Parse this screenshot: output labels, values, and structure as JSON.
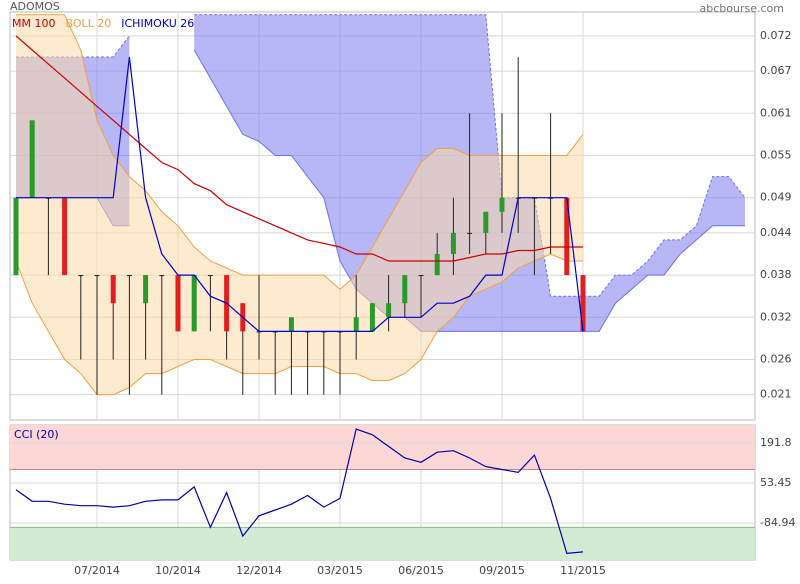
{
  "chart_data": [
    {
      "type": "candlestick",
      "title": "ADOMOS",
      "source": "abcbourse.com",
      "open": [
        0.038,
        0.049,
        0.049,
        0.049,
        0.038,
        0.038,
        0.038,
        0.038,
        0.034,
        0.038,
        0.038,
        0.03,
        0.038,
        0.038,
        0.034,
        0.03,
        0.03,
        0.03,
        0.03,
        0.03,
        0.03,
        0.03,
        0.03,
        0.032,
        0.034,
        0.038,
        0.038,
        0.041,
        0.044,
        0.044,
        0.047,
        0.049,
        0.049,
        0.049,
        0.049,
        0.038,
        null,
        null,
        null,
        null,
        null,
        null,
        null,
        null,
        null,
        null
      ],
      "high": [
        0.049,
        0.06,
        0.049,
        0.049,
        0.038,
        0.038,
        0.038,
        0.038,
        0.038,
        0.038,
        0.038,
        0.038,
        0.038,
        0.038,
        0.034,
        0.038,
        0.03,
        0.032,
        0.03,
        0.03,
        0.03,
        0.038,
        0.034,
        0.038,
        0.038,
        0.038,
        0.044,
        0.049,
        0.061,
        0.047,
        0.061,
        0.069,
        0.049,
        0.061,
        0.049,
        0.038,
        null,
        null,
        null,
        null,
        null,
        null,
        null,
        null,
        null,
        null
      ],
      "low": [
        0.038,
        0.049,
        0.038,
        0.038,
        0.026,
        0.021,
        0.026,
        0.021,
        0.026,
        0.021,
        0.03,
        0.03,
        0.03,
        0.026,
        0.021,
        0.026,
        0.021,
        0.021,
        0.021,
        0.021,
        0.021,
        0.026,
        0.03,
        0.03,
        0.032,
        0.032,
        0.038,
        0.038,
        0.041,
        0.041,
        0.044,
        0.044,
        0.038,
        0.041,
        0.038,
        0.03,
        null,
        null,
        null,
        null,
        null,
        null,
        null,
        null,
        null,
        null
      ],
      "close": [
        0.049,
        0.06,
        0.049,
        0.038,
        0.038,
        0.038,
        0.034,
        0.038,
        0.038,
        0.038,
        0.03,
        0.038,
        0.038,
        0.03,
        0.03,
        0.03,
        0.03,
        0.032,
        0.03,
        0.03,
        0.03,
        0.032,
        0.034,
        0.034,
        0.038,
        0.038,
        0.041,
        0.044,
        0.044,
        0.047,
        0.049,
        0.049,
        0.049,
        0.049,
        0.038,
        0.03,
        null,
        null,
        null,
        null,
        null,
        null,
        null,
        null,
        null,
        null
      ],
      "up_color": "#2a9a2a",
      "down_color": "#e02020",
      "flat_color": "#222222",
      "series": [
        {
          "name": "MM 100",
          "color": "#cc0000",
          "values": [
            0.072,
            0.07,
            0.068,
            0.066,
            0.064,
            0.062,
            0.06,
            0.058,
            0.056,
            0.054,
            0.053,
            0.051,
            0.05,
            0.048,
            0.047,
            0.046,
            0.045,
            0.044,
            0.043,
            0.0425,
            0.042,
            0.041,
            0.041,
            0.04,
            0.04,
            0.04,
            0.04,
            0.04,
            0.0405,
            0.041,
            0.041,
            0.0415,
            0.0415,
            0.042,
            0.042,
            0.042,
            null,
            null,
            null,
            null,
            null,
            null,
            null,
            null,
            null,
            null
          ]
        },
        {
          "name": "BOLL 20",
          "color": "#f0a040",
          "fill": "#fbd9a8",
          "upper": [
            0.075,
            0.075,
            0.075,
            0.075,
            0.07,
            0.06,
            0.055,
            0.052,
            0.05,
            0.047,
            0.045,
            0.042,
            0.04,
            0.039,
            0.038,
            0.038,
            0.038,
            0.038,
            0.038,
            0.038,
            0.036,
            0.038,
            0.042,
            0.046,
            0.05,
            0.054,
            0.056,
            0.056,
            0.055,
            0.055,
            0.055,
            0.055,
            0.055,
            0.055,
            0.055,
            0.058,
            null,
            null,
            null,
            null,
            null,
            null,
            null,
            null,
            null,
            null
          ],
          "lower": [
            0.04,
            0.034,
            0.03,
            0.026,
            0.024,
            0.021,
            0.021,
            0.022,
            0.024,
            0.024,
            0.025,
            0.026,
            0.026,
            0.025,
            0.024,
            0.024,
            0.024,
            0.025,
            0.025,
            0.025,
            0.024,
            0.024,
            0.023,
            0.023,
            0.024,
            0.026,
            0.03,
            0.032,
            0.035,
            0.036,
            0.037,
            0.039,
            0.04,
            0.041,
            0.04,
            0.04,
            null,
            null,
            null,
            null,
            null,
            null,
            null,
            null,
            null,
            null
          ]
        },
        {
          "name": "ICHIMOKU 26",
          "color": "#0000cc",
          "cloud_color": "#6f6fee",
          "values": [
            0.049,
            0.049,
            0.049,
            0.049,
            0.049,
            0.049,
            0.049,
            0.069,
            0.049,
            0.041,
            0.038,
            0.038,
            0.035,
            0.034,
            0.032,
            0.03,
            0.03,
            0.03,
            0.03,
            0.03,
            0.03,
            0.03,
            0.03,
            0.032,
            0.032,
            0.032,
            0.034,
            0.034,
            0.035,
            0.038,
            0.038,
            0.049,
            0.049,
            0.049,
            0.049,
            0.03,
            null,
            null,
            null,
            null,
            null,
            null,
            null,
            null,
            null,
            null
          ],
          "span_a": [
            0.069,
            0.069,
            0.069,
            0.069,
            0.069,
            0.069,
            0.069,
            0.072,
            null,
            null,
            null,
            0.075,
            0.075,
            0.075,
            0.075,
            0.075,
            0.075,
            0.075,
            0.075,
            0.075,
            0.075,
            0.075,
            0.075,
            0.075,
            0.075,
            0.075,
            0.075,
            0.075,
            0.075,
            0.075,
            0.049,
            0.049,
            0.049,
            0.035,
            0.035,
            0.035,
            0.035,
            0.038,
            0.038,
            0.04,
            0.043,
            0.043,
            0.045,
            0.052,
            0.052,
            0.049
          ],
          "span_b": [
            0.049,
            0.049,
            0.049,
            0.049,
            0.049,
            0.049,
            0.045,
            0.045,
            null,
            null,
            null,
            0.07,
            0.066,
            0.062,
            0.058,
            0.057,
            0.055,
            0.055,
            0.052,
            0.049,
            0.04,
            0.036,
            0.034,
            0.032,
            0.032,
            0.03,
            0.03,
            0.03,
            0.03,
            0.03,
            0.03,
            0.03,
            0.03,
            0.03,
            0.03,
            0.03,
            0.03,
            0.034,
            0.036,
            0.038,
            0.038,
            0.041,
            0.043,
            0.045,
            0.045,
            0.045
          ]
        }
      ],
      "ylim": [
        0.0174,
        0.0754
      ],
      "yticks": [
        0.021,
        0.026,
        0.032,
        0.038,
        0.044,
        0.049,
        0.055,
        0.061,
        0.067,
        0.072
      ],
      "grid": true
    },
    {
      "type": "line",
      "title": "CCI (20)",
      "color": "#0000aa",
      "categories": [
        null,
        null,
        null,
        null,
        null,
        "07/2014",
        null,
        null,
        null,
        null,
        "10/2014",
        null,
        null,
        null,
        null,
        "12/2014",
        null,
        null,
        null,
        null,
        "03/2015",
        null,
        null,
        null,
        null,
        "06/2015",
        null,
        null,
        null,
        null,
        "09/2015",
        null,
        null,
        null,
        null,
        "11/2015",
        null,
        null,
        null,
        null,
        null,
        null,
        null,
        null,
        null,
        null
      ],
      "values": [
        30,
        -10,
        -10,
        -20,
        -25,
        -25,
        -30,
        -25,
        -10,
        -5,
        -5,
        40,
        -100,
        20,
        -130,
        -60,
        -40,
        -20,
        10,
        -30,
        0,
        240,
        220,
        180,
        140,
        125,
        160,
        165,
        140,
        110,
        100,
        90,
        150,
        0,
        -190,
        -185,
        null,
        null,
        null,
        null,
        null,
        null,
        null,
        null,
        null,
        null
      ],
      "ylim": [
        -213,
        254
      ],
      "yticks": [
        191.8,
        53.45,
        -84.94
      ],
      "upper_band": 100,
      "lower_band": -100,
      "upper_color": "#fdd6d6",
      "lower_color": "#d5ead5",
      "grid": true
    }
  ]
}
